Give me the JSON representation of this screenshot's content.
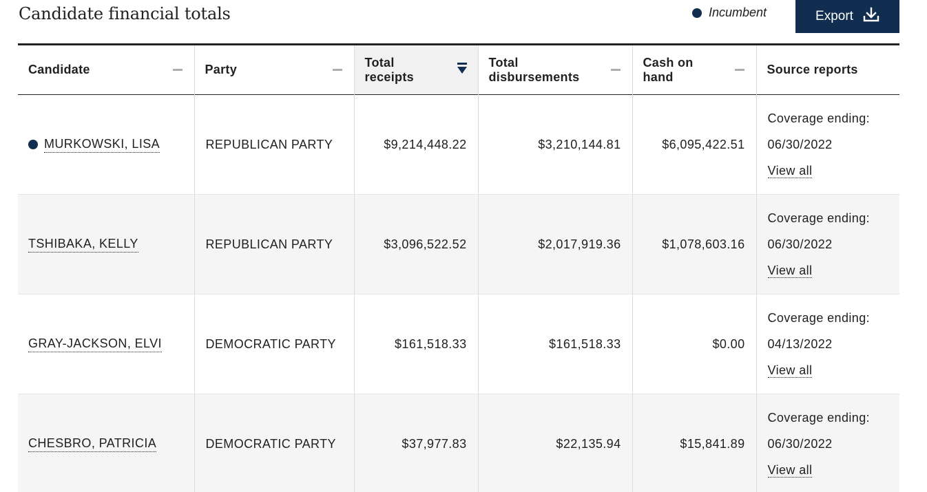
{
  "title": "Candidate financial totals",
  "legend": {
    "label": "Incumbent",
    "color": "#112e51"
  },
  "export": {
    "label": "Export",
    "icon": "download-icon"
  },
  "columns": {
    "candidate": "Candidate",
    "party": "Party",
    "receipts_1": "Total",
    "receipts_2": "receipts",
    "disb_1": "Total",
    "disb_2": "disbursements",
    "cash_1": "Cash on",
    "cash_2": "hand",
    "source": "Source reports"
  },
  "sorted_column": "Total receipts",
  "rows": [
    {
      "candidate": "MURKOWSKI, LISA",
      "incumbent": true,
      "party": "REPUBLICAN PARTY",
      "receipts": "$9,214,448.22",
      "disbursements": "$3,210,144.81",
      "cash": "$6,095,422.51",
      "coverage_label": "Coverage ending:",
      "coverage_date": "06/30/2022",
      "view_all": "View all"
    },
    {
      "candidate": "TSHIBAKA, KELLY",
      "incumbent": false,
      "party": "REPUBLICAN PARTY",
      "receipts": "$3,096,522.52",
      "disbursements": "$2,017,919.36",
      "cash": "$1,078,603.16",
      "coverage_label": "Coverage ending:",
      "coverage_date": "06/30/2022",
      "view_all": "View all"
    },
    {
      "candidate": "GRAY-JACKSON, ELVI",
      "incumbent": false,
      "party": "DEMOCRATIC PARTY",
      "receipts": "$161,518.33",
      "disbursements": "$161,518.33",
      "cash": "$0.00",
      "coverage_label": "Coverage ending:",
      "coverage_date": "04/13/2022",
      "view_all": "View all"
    },
    {
      "candidate": "CHESBRO, PATRICIA",
      "incumbent": false,
      "party": "DEMOCRATIC PARTY",
      "receipts": "$37,977.83",
      "disbursements": "$22,135.94",
      "cash": "$15,841.89",
      "coverage_label": "Coverage ending:",
      "coverage_date": "06/30/2022",
      "view_all": "View all"
    }
  ]
}
